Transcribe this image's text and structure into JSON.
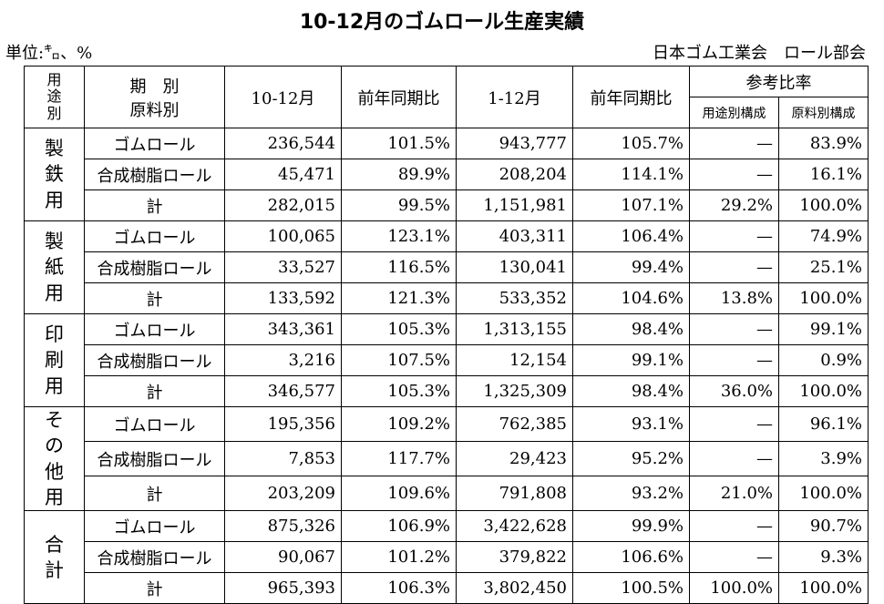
{
  "title": "10-12月のゴムロール生産実績",
  "unit": "単位:㌔、%",
  "org": "日本ゴム工業会　ロール部会",
  "chart_data": {
    "type": "table",
    "headers": {
      "group": [
        "用",
        "途",
        "別"
      ],
      "period_line1": "期　別",
      "period_line2": "原料別",
      "q": "10-12月",
      "q_yoy": "前年同期比",
      "year": "1-12月",
      "year_yoy": "前年同期比",
      "ref": "参考比率",
      "ref_use": "用途別構成",
      "ref_material": "原料別構成"
    },
    "groups": [
      {
        "label": [
          "製",
          "鉄",
          "用"
        ],
        "rows": [
          [
            "ゴムロール",
            "236,544",
            "101.5%",
            "943,777",
            "105.7%",
            "—",
            "83.9%"
          ],
          [
            "合成樹脂ロール",
            "45,471",
            "89.9%",
            "208,204",
            "114.1%",
            "—",
            "16.1%"
          ],
          [
            "計",
            "282,015",
            "99.5%",
            "1,151,981",
            "107.1%",
            "29.2%",
            "100.0%"
          ]
        ]
      },
      {
        "label": [
          "製",
          "紙",
          "用"
        ],
        "rows": [
          [
            "ゴムロール",
            "100,065",
            "123.1%",
            "403,311",
            "106.4%",
            "—",
            "74.9%"
          ],
          [
            "合成樹脂ロール",
            "33,527",
            "116.5%",
            "130,041",
            "99.4%",
            "—",
            "25.1%"
          ],
          [
            "計",
            "133,592",
            "121.3%",
            "533,352",
            "104.6%",
            "13.8%",
            "100.0%"
          ]
        ]
      },
      {
        "label": [
          "印",
          "刷",
          "用"
        ],
        "rows": [
          [
            "ゴムロール",
            "343,361",
            "105.3%",
            "1,313,155",
            "98.4%",
            "—",
            "99.1%"
          ],
          [
            "合成樹脂ロール",
            "3,216",
            "107.5%",
            "12,154",
            "99.1%",
            "—",
            "0.9%"
          ],
          [
            "計",
            "346,577",
            "105.3%",
            "1,325,309",
            "98.4%",
            "36.0%",
            "100.0%"
          ]
        ]
      },
      {
        "label": [
          "そ",
          "の",
          "他",
          "用"
        ],
        "rows": [
          [
            "ゴムロール",
            "195,356",
            "109.2%",
            "762,385",
            "93.1%",
            "—",
            "96.1%"
          ],
          [
            "合成樹脂ロール",
            "7,853",
            "117.7%",
            "29,423",
            "95.2%",
            "—",
            "3.9%"
          ],
          [
            "計",
            "203,209",
            "109.6%",
            "791,808",
            "93.2%",
            "21.0%",
            "100.0%"
          ]
        ]
      },
      {
        "label": [
          "合",
          "計"
        ],
        "rows": [
          [
            "ゴムロール",
            "875,326",
            "106.9%",
            "3,422,628",
            "99.9%",
            "—",
            "90.7%"
          ],
          [
            "合成樹脂ロール",
            "90,067",
            "101.2%",
            "379,822",
            "106.6%",
            "—",
            "9.3%"
          ],
          [
            "計",
            "965,393",
            "106.3%",
            "3,802,450",
            "100.5%",
            "100.0%",
            "100.0%"
          ]
        ]
      }
    ]
  }
}
